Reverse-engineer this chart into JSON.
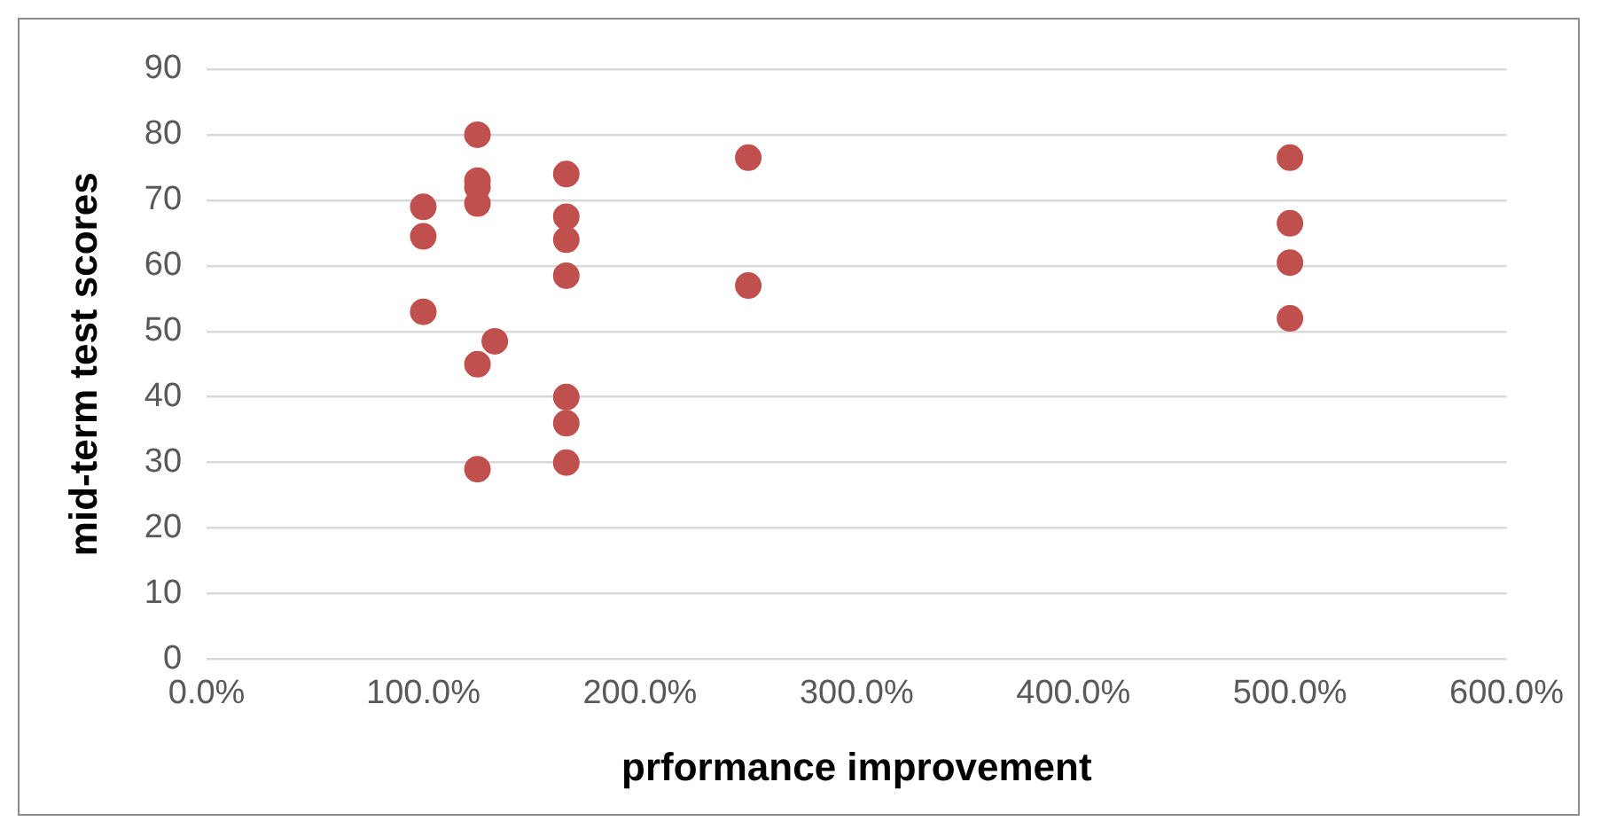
{
  "chart_data": {
    "type": "scatter",
    "xlabel": "prformance improvement",
    "ylabel": "mid-term test scores",
    "series": [
      {
        "color": "#c0504d",
        "x": [
          100,
          100,
          100,
          125,
          125,
          125,
          125,
          125,
          125,
          133,
          166,
          166,
          166,
          166,
          166,
          166,
          166,
          250,
          250,
          500,
          500,
          500,
          500
        ],
        "values": [
          69,
          64.5,
          53,
          80,
          73,
          72,
          69.5,
          45,
          29,
          48.5,
          74,
          67.5,
          64,
          58.5,
          40,
          36,
          30,
          76.5,
          57,
          76.5,
          66.5,
          60.5,
          52
        ]
      }
    ],
    "xlim": [
      0,
      600
    ],
    "xticks": [
      {
        "value": 0,
        "label": "0.0%"
      },
      {
        "value": 100,
        "label": "100.0%"
      },
      {
        "value": 200,
        "label": "200.0%"
      },
      {
        "value": 300,
        "label": "300.0%"
      },
      {
        "value": 400,
        "label": "400.0%"
      },
      {
        "value": 500,
        "label": "500.0%"
      },
      {
        "value": 600,
        "label": "600.0%"
      }
    ],
    "ylim": [
      0,
      90
    ],
    "yticks": [
      0,
      10,
      20,
      30,
      40,
      50,
      60,
      70,
      80,
      90
    ],
    "grid": "y",
    "legend": false,
    "marker": "circle"
  }
}
